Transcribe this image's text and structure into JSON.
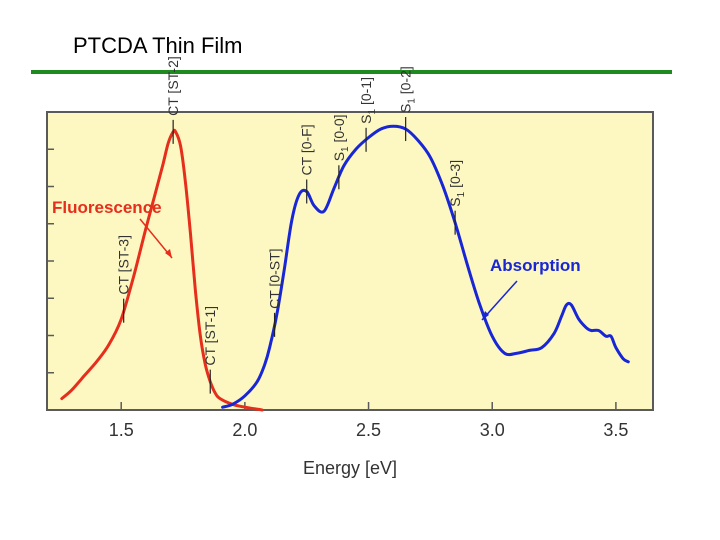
{
  "slide": {
    "title": "PTCDA Thin Film",
    "accent_color": "#1f8a1f"
  },
  "chart_data": {
    "type": "line",
    "title": "",
    "xlabel": "Energy [eV]",
    "ylabel": "",
    "xlim": [
      1.2,
      3.65
    ],
    "ylim": [
      0,
      1.05
    ],
    "xticks": [
      1.5,
      2.0,
      2.5,
      3.0,
      3.5
    ],
    "xtick_labels": [
      "1.5",
      "2.0",
      "2.5",
      "3.0",
      "3.5"
    ],
    "grid": false,
    "background_color": "#fdf8c2",
    "series": [
      {
        "name": "Fluorescence",
        "color": "#e62e1c",
        "x": [
          1.26,
          1.3,
          1.35,
          1.4,
          1.45,
          1.5,
          1.55,
          1.6,
          1.64,
          1.67,
          1.69,
          1.71,
          1.72,
          1.74,
          1.76,
          1.78,
          1.8,
          1.82,
          1.84,
          1.86,
          1.88,
          1.9,
          1.95,
          2.0,
          2.07
        ],
        "y": [
          0.04,
          0.07,
          0.12,
          0.17,
          0.23,
          0.32,
          0.47,
          0.64,
          0.77,
          0.87,
          0.94,
          0.98,
          0.98,
          0.93,
          0.8,
          0.62,
          0.42,
          0.26,
          0.16,
          0.1,
          0.06,
          0.04,
          0.02,
          0.01,
          0.0
        ]
      },
      {
        "name": "Absorption",
        "color": "#1826d6",
        "x": [
          1.91,
          1.95,
          2.0,
          2.05,
          2.08,
          2.1,
          2.13,
          2.16,
          2.19,
          2.22,
          2.25,
          2.28,
          2.32,
          2.36,
          2.4,
          2.45,
          2.5,
          2.55,
          2.6,
          2.65,
          2.7,
          2.75,
          2.8,
          2.85,
          2.9,
          2.95,
          3.0,
          3.05,
          3.1,
          3.15,
          3.2,
          3.25,
          3.28,
          3.3,
          3.32,
          3.35,
          3.38,
          3.4,
          3.43,
          3.46,
          3.48,
          3.5,
          3.53,
          3.55
        ],
        "y": [
          0.01,
          0.02,
          0.05,
          0.1,
          0.16,
          0.22,
          0.34,
          0.5,
          0.67,
          0.76,
          0.77,
          0.72,
          0.7,
          0.78,
          0.86,
          0.92,
          0.96,
          0.99,
          1.0,
          0.99,
          0.95,
          0.89,
          0.79,
          0.66,
          0.51,
          0.37,
          0.26,
          0.2,
          0.2,
          0.21,
          0.22,
          0.27,
          0.33,
          0.37,
          0.37,
          0.32,
          0.29,
          0.28,
          0.28,
          0.26,
          0.26,
          0.22,
          0.18,
          0.17
        ]
      }
    ],
    "series_labels": [
      {
        "text": "Fluorescence",
        "color": "#e62e1c"
      },
      {
        "text": "Absorption",
        "color": "#1826d6"
      }
    ],
    "annotations": [
      {
        "id": "ct-st-3",
        "x": 1.51,
        "prefix": "CT [ST-3]",
        "sub": "",
        "suffix": ""
      },
      {
        "id": "ct-st-2",
        "x": 1.71,
        "prefix": "CT [ST-2]",
        "sub": "",
        "suffix": ""
      },
      {
        "id": "ct-st-1",
        "x": 1.86,
        "prefix": "CT [ST-1]",
        "sub": "",
        "suffix": ""
      },
      {
        "id": "ct-0-st",
        "x": 2.12,
        "prefix": "CT [0-ST]",
        "sub": "",
        "suffix": ""
      },
      {
        "id": "ct-0-f",
        "x": 2.25,
        "prefix": "CT [0-F]",
        "sub": "",
        "suffix": ""
      },
      {
        "id": "s1-0-0",
        "x": 2.38,
        "prefix": "S",
        "sub": "1",
        "suffix": " [0-0]"
      },
      {
        "id": "s1-0-1",
        "x": 2.49,
        "prefix": "S",
        "sub": "1",
        "suffix": " [0-1]"
      },
      {
        "id": "s1-0-2",
        "x": 2.65,
        "prefix": "S",
        "sub": "1",
        "suffix": " [0-2]"
      },
      {
        "id": "s1-0-3",
        "x": 2.85,
        "prefix": "S",
        "sub": "1",
        "suffix": " [0-3]"
      }
    ]
  }
}
